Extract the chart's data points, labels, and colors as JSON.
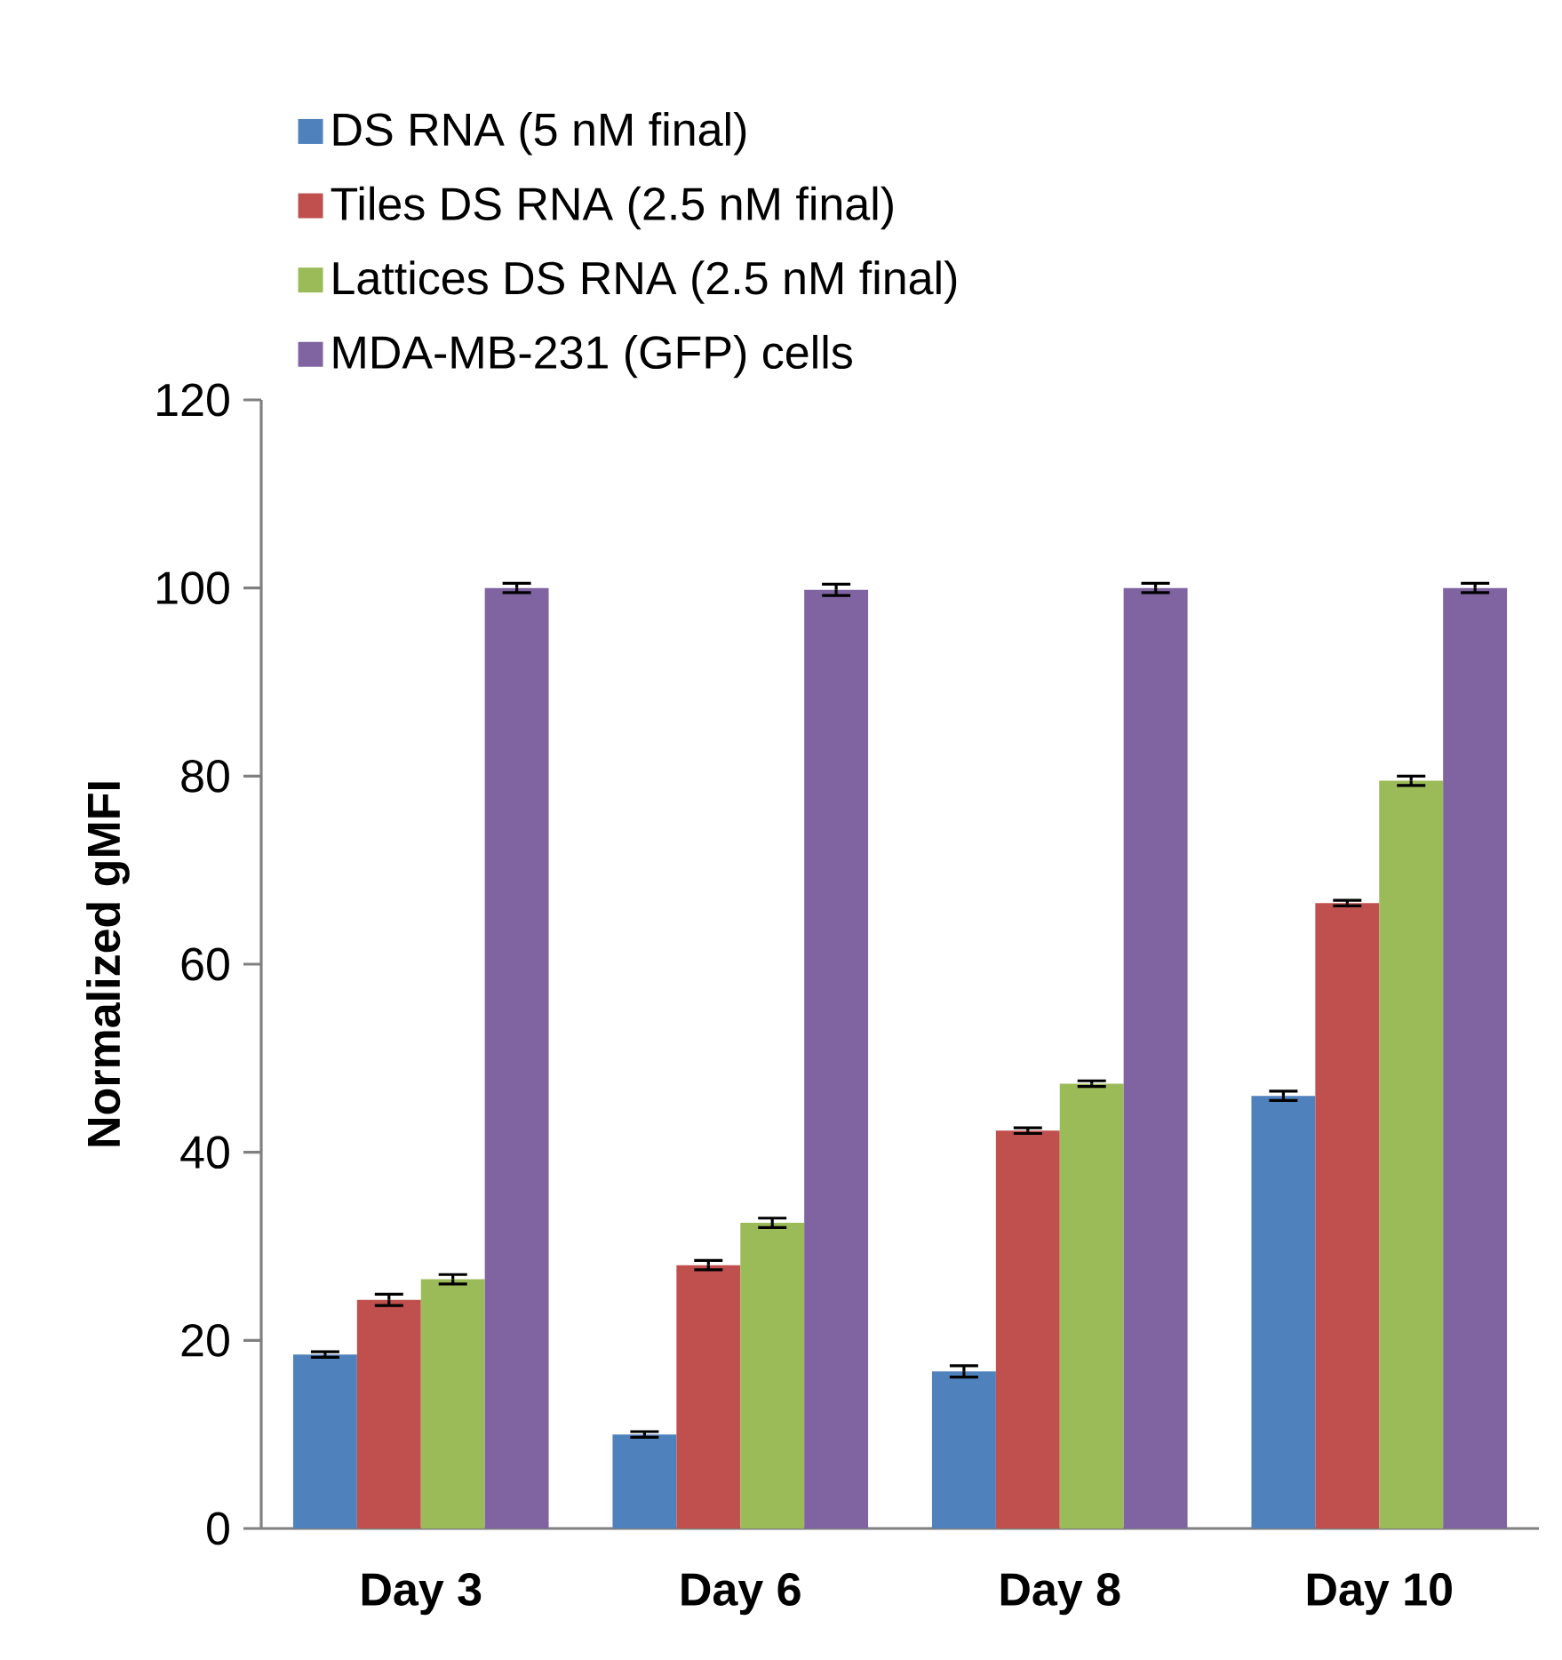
{
  "chart_data": {
    "type": "bar",
    "ylabel": "Normalized gMFI",
    "categories": [
      "Day 3",
      "Day 6",
      "Day 8",
      "Day 10"
    ],
    "series": [
      {
        "name": "DS RNA (5 nM final)",
        "color": "#4f81bd",
        "values": [
          18.5,
          10,
          16.7,
          46
        ],
        "errors": [
          0.3,
          0.3,
          0.6,
          0.5
        ]
      },
      {
        "name": "Tiles DS RNA (2.5 nM final)",
        "color": "#c0504d",
        "values": [
          24.3,
          28,
          42.3,
          66.5
        ],
        "errors": [
          0.6,
          0.5,
          0.3,
          0.3
        ]
      },
      {
        "name": "Lattices DS RNA (2.5 nM final)",
        "color": "#9bbb59",
        "values": [
          26.5,
          32.5,
          47.3,
          79.5
        ],
        "errors": [
          0.5,
          0.5,
          0.3,
          0.5
        ]
      },
      {
        "name": "MDA-MB-231 (GFP) cells",
        "color": "#8064a2",
        "values": [
          100,
          99.8,
          100,
          100
        ],
        "errors": [
          0.5,
          0.6,
          0.5,
          0.5
        ]
      }
    ],
    "ylim": [
      0,
      120
    ],
    "yticks": [
      0,
      20,
      40,
      60,
      80,
      100,
      120
    ],
    "grid": false,
    "legend": "top left"
  }
}
